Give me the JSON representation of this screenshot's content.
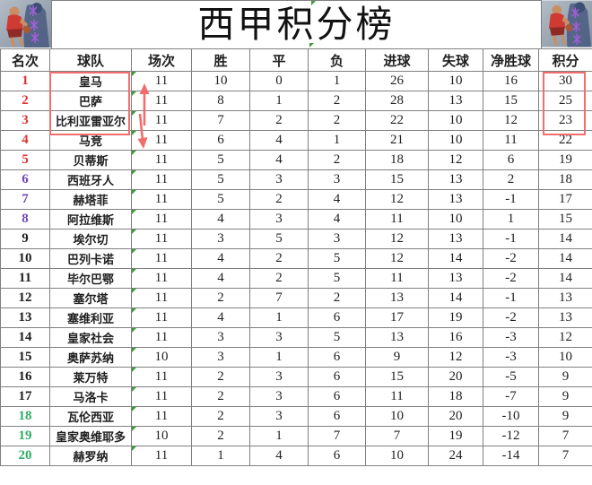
{
  "page": {
    "title": "西甲积分榜"
  },
  "palette": {
    "rank_red": "#e03131",
    "rank_purple": "#7048b6",
    "rank_green": "#2fac66",
    "text_black": "#1f1f1f",
    "grid_gray": "#808080",
    "annotation_red": "#f26d6d",
    "flag_green": "#3a9e3a"
  },
  "icons": {
    "corner_left": "basketball-players-photo",
    "corner_right": "basketball-players-photo",
    "cell_flag": "excel-error-triangle"
  },
  "chart_data": {
    "type": "table",
    "title": "西甲积分榜",
    "headers": [
      "名次",
      "球队",
      "场次",
      "胜",
      "平",
      "负",
      "进球",
      "失球",
      "净胜球",
      "积分"
    ],
    "rows": [
      {
        "rank": 1,
        "team": "皇马",
        "played": 11,
        "win": 10,
        "draw": 0,
        "loss": 1,
        "gf": 26,
        "ga": 10,
        "gd": 16,
        "pts": 30,
        "rank_color": "red"
      },
      {
        "rank": 2,
        "team": "巴萨",
        "played": 11,
        "win": 8,
        "draw": 1,
        "loss": 2,
        "gf": 28,
        "ga": 13,
        "gd": 15,
        "pts": 25,
        "rank_color": "red"
      },
      {
        "rank": 3,
        "team": "比利亚雷亚尔",
        "played": 11,
        "win": 7,
        "draw": 2,
        "loss": 2,
        "gf": 22,
        "ga": 10,
        "gd": 12,
        "pts": 23,
        "rank_color": "red"
      },
      {
        "rank": 4,
        "team": "马竞",
        "played": 11,
        "win": 6,
        "draw": 4,
        "loss": 1,
        "gf": 21,
        "ga": 10,
        "gd": 11,
        "pts": 22,
        "rank_color": "red"
      },
      {
        "rank": 5,
        "team": "贝蒂斯",
        "played": 11,
        "win": 5,
        "draw": 4,
        "loss": 2,
        "gf": 18,
        "ga": 12,
        "gd": 6,
        "pts": 19,
        "rank_color": "red"
      },
      {
        "rank": 6,
        "team": "西班牙人",
        "played": 11,
        "win": 5,
        "draw": 3,
        "loss": 3,
        "gf": 15,
        "ga": 13,
        "gd": 2,
        "pts": 18,
        "rank_color": "purple"
      },
      {
        "rank": 7,
        "team": "赫塔菲",
        "played": 11,
        "win": 5,
        "draw": 2,
        "loss": 4,
        "gf": 12,
        "ga": 13,
        "gd": -1,
        "pts": 17,
        "rank_color": "purple"
      },
      {
        "rank": 8,
        "team": "阿拉维斯",
        "played": 11,
        "win": 4,
        "draw": 3,
        "loss": 4,
        "gf": 11,
        "ga": 10,
        "gd": 1,
        "pts": 15,
        "rank_color": "purple"
      },
      {
        "rank": 9,
        "team": "埃尔切",
        "played": 11,
        "win": 3,
        "draw": 5,
        "loss": 3,
        "gf": 12,
        "ga": 13,
        "gd": -1,
        "pts": 14,
        "rank_color": "black"
      },
      {
        "rank": 10,
        "team": "巴列卡诺",
        "played": 11,
        "win": 4,
        "draw": 2,
        "loss": 5,
        "gf": 12,
        "ga": 14,
        "gd": -2,
        "pts": 14,
        "rank_color": "black"
      },
      {
        "rank": 11,
        "team": "毕尔巴鄂",
        "played": 11,
        "win": 4,
        "draw": 2,
        "loss": 5,
        "gf": 11,
        "ga": 13,
        "gd": -2,
        "pts": 14,
        "rank_color": "black"
      },
      {
        "rank": 12,
        "team": "塞尔塔",
        "played": 11,
        "win": 2,
        "draw": 7,
        "loss": 2,
        "gf": 13,
        "ga": 14,
        "gd": -1,
        "pts": 13,
        "rank_color": "black"
      },
      {
        "rank": 13,
        "team": "塞维利亚",
        "played": 11,
        "win": 4,
        "draw": 1,
        "loss": 6,
        "gf": 17,
        "ga": 19,
        "gd": -2,
        "pts": 13,
        "rank_color": "black"
      },
      {
        "rank": 14,
        "team": "皇家社会",
        "played": 11,
        "win": 3,
        "draw": 3,
        "loss": 5,
        "gf": 13,
        "ga": 16,
        "gd": -3,
        "pts": 12,
        "rank_color": "black"
      },
      {
        "rank": 15,
        "team": "奥萨苏纳",
        "played": 10,
        "win": 3,
        "draw": 1,
        "loss": 6,
        "gf": 9,
        "ga": 12,
        "gd": -3,
        "pts": 10,
        "rank_color": "black"
      },
      {
        "rank": 16,
        "team": "莱万特",
        "played": 11,
        "win": 2,
        "draw": 3,
        "loss": 6,
        "gf": 15,
        "ga": 20,
        "gd": -5,
        "pts": 9,
        "rank_color": "black"
      },
      {
        "rank": 17,
        "team": "马洛卡",
        "played": 11,
        "win": 2,
        "draw": 3,
        "loss": 6,
        "gf": 11,
        "ga": 18,
        "gd": -7,
        "pts": 9,
        "rank_color": "black"
      },
      {
        "rank": 18,
        "team": "瓦伦西亚",
        "played": 11,
        "win": 2,
        "draw": 3,
        "loss": 6,
        "gf": 10,
        "ga": 20,
        "gd": -10,
        "pts": 9,
        "rank_color": "green"
      },
      {
        "rank": 19,
        "team": "皇家奥维耶多",
        "played": 10,
        "win": 2,
        "draw": 1,
        "loss": 7,
        "gf": 7,
        "ga": 19,
        "gd": -12,
        "pts": 7,
        "rank_color": "green"
      },
      {
        "rank": 20,
        "team": "赫罗纳",
        "played": 11,
        "win": 1,
        "draw": 4,
        "loss": 6,
        "gf": 10,
        "ga": 24,
        "gd": -14,
        "pts": 7,
        "rank_color": "green"
      }
    ]
  }
}
